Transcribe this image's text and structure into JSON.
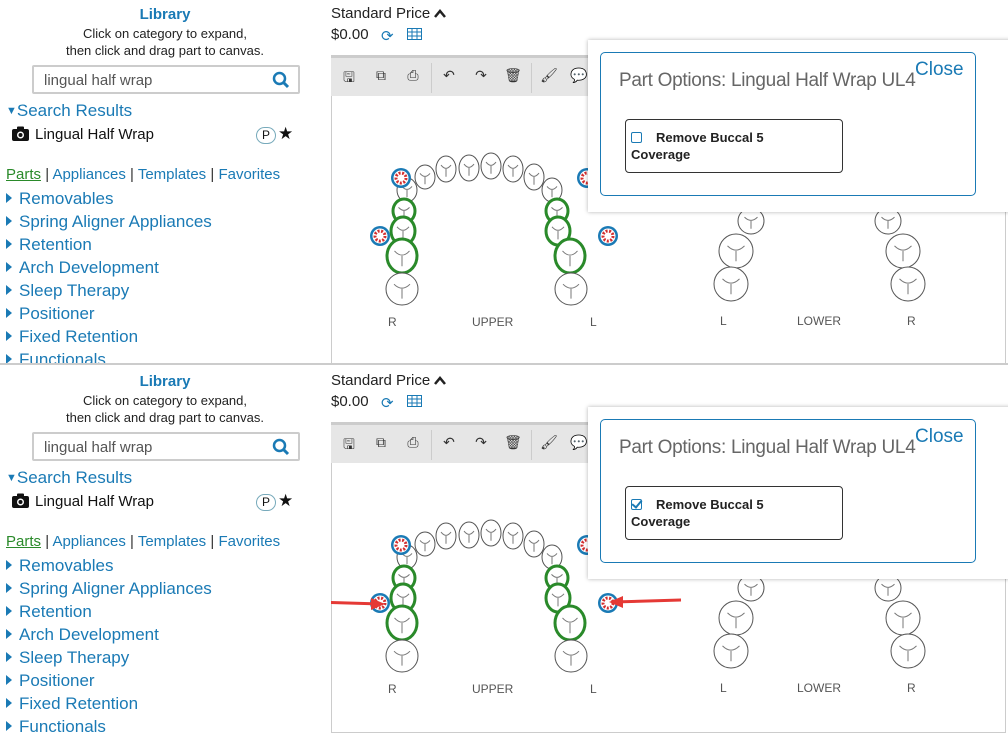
{
  "library": {
    "title": "Library",
    "hint_line1": "Click on category to expand,",
    "hint_line2": "then click and drag part to canvas.",
    "search_value": "lingual half wrap",
    "search_results_label": "Search Results",
    "result_item": "Lingual Half Wrap",
    "result_badge": "P",
    "tabs": [
      "Parts",
      "Appliances",
      "Templates",
      "Favorites"
    ],
    "categories": [
      "Removables",
      "Spring Aligner Appliances",
      "Retention",
      "Arch Development",
      "Sleep Therapy",
      "Positioner",
      "Fixed Retention",
      "Functionals"
    ]
  },
  "pricing": {
    "label": "Standard Price",
    "value": "$0.00"
  },
  "toolbar_icons": [
    "save-icon",
    "copy-icon",
    "print-icon",
    "undo-icon",
    "redo-icon",
    "trash-icon",
    "brush-icon",
    "comment-icon"
  ],
  "canvas": {
    "upper": {
      "label": "UPPER",
      "right": "R",
      "left": "L"
    },
    "lower": {
      "label": "LOWER",
      "right": "R",
      "left": "L"
    }
  },
  "popup": {
    "title": "Part Options: Lingual Half Wrap UL4",
    "close": "Close",
    "option_line1": "Remove Buccal 5",
    "option_line2": "Coverage"
  },
  "panels": [
    {
      "option_checked": false,
      "arrows_shown": false
    },
    {
      "option_checked": true,
      "arrows_shown": true
    }
  ],
  "colors": {
    "accent": "#1a7ab5",
    "wire": "#2a8a2a",
    "gear": "#d32f2f",
    "arrow": "#e53935"
  }
}
